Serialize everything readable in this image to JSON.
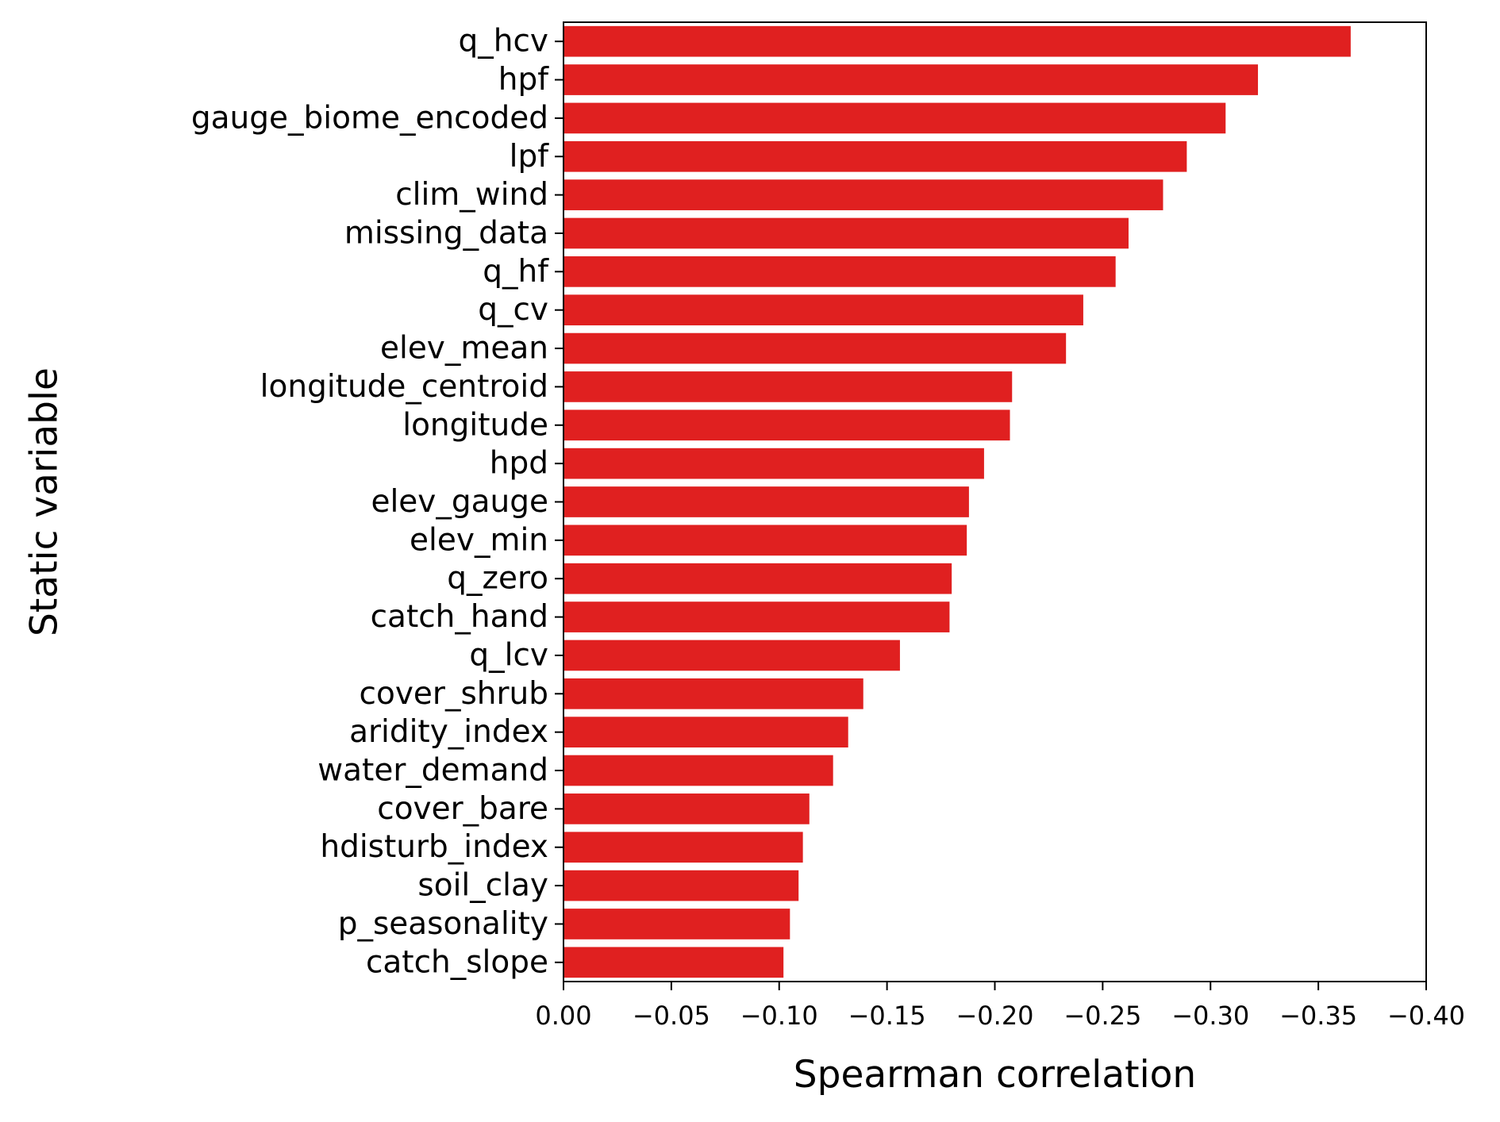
{
  "chart_data": {
    "type": "bar",
    "orientation": "horizontal",
    "title": "",
    "xlabel": "Spearman correlation",
    "ylabel": "Static variable",
    "xlim": [
      0.0,
      -0.4
    ],
    "x_ticks": [
      0.0,
      -0.05,
      -0.1,
      -0.15,
      -0.2,
      -0.25,
      -0.3,
      -0.35,
      -0.4
    ],
    "x_tick_labels": [
      "0.00",
      "−0.05",
      "−0.10",
      "−0.15",
      "−0.20",
      "−0.25",
      "−0.30",
      "−0.35",
      "−0.40"
    ],
    "grid": false,
    "bar_color": "#e02020",
    "categories": [
      "q_hcv",
      "hpf",
      "gauge_biome_encoded",
      "lpf",
      "clim_wind",
      "missing_data",
      "q_hf",
      "q_cv",
      "elev_mean",
      "longitude_centroid",
      "longitude",
      "hpd",
      "elev_gauge",
      "elev_min",
      "q_zero",
      "catch_hand",
      "q_lcv",
      "cover_shrub",
      "aridity_index",
      "water_demand",
      "cover_bare",
      "hdisturb_index",
      "soil_clay",
      "p_seasonality",
      "catch_slope"
    ],
    "values": [
      -0.365,
      -0.322,
      -0.307,
      -0.289,
      -0.278,
      -0.262,
      -0.256,
      -0.241,
      -0.233,
      -0.208,
      -0.207,
      -0.195,
      -0.188,
      -0.187,
      -0.18,
      -0.179,
      -0.156,
      -0.139,
      -0.132,
      -0.125,
      -0.114,
      -0.111,
      -0.109,
      -0.105,
      -0.102
    ]
  }
}
